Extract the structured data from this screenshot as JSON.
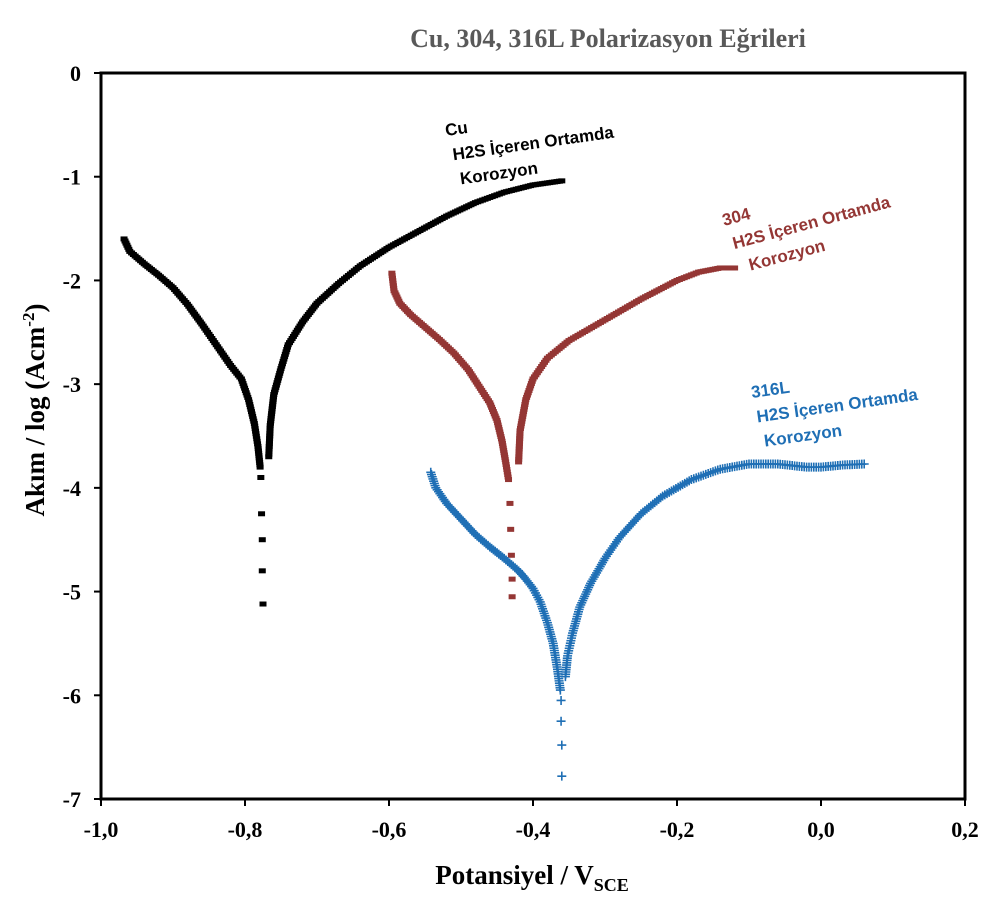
{
  "chart_data": {
    "type": "scatter",
    "title": "Cu, 304, 316L Polarizasyon Eğrileri",
    "xlabel": "Potansiyel / V",
    "xlabel_sub": "SCE",
    "ylabel": "Akım / log (Acm",
    "ylabel_sup": "-2",
    "ylabel_close": ")",
    "xlim": [
      -1.0,
      0.2
    ],
    "ylim": [
      -7,
      0
    ],
    "x_ticks": [
      "-1,0",
      "-0,8",
      "-0,6",
      "-0,4",
      "-0,2",
      "0,0",
      "0,2"
    ],
    "y_ticks": [
      "0",
      "-1",
      "-2",
      "-3",
      "-4",
      "-5",
      "-6",
      "-7"
    ],
    "grid": false,
    "series": [
      {
        "name": "Cu",
        "annotation": [
          "Cu",
          "H2S İçeren Ortamda",
          "Korozyon"
        ],
        "color": "#000000",
        "marker": "square",
        "anodic": [
          [
            -0.767,
            -3.7
          ],
          [
            -0.765,
            -3.4
          ],
          [
            -0.76,
            -3.1
          ],
          [
            -0.75,
            -2.85
          ],
          [
            -0.74,
            -2.62
          ],
          [
            -0.72,
            -2.4
          ],
          [
            -0.7,
            -2.22
          ],
          [
            -0.67,
            -2.03
          ],
          [
            -0.64,
            -1.86
          ],
          [
            -0.6,
            -1.68
          ],
          [
            -0.56,
            -1.53
          ],
          [
            -0.52,
            -1.38
          ],
          [
            -0.48,
            -1.25
          ],
          [
            -0.44,
            -1.15
          ],
          [
            -0.4,
            -1.08
          ],
          [
            -0.36,
            -1.04
          ]
        ],
        "cathodic": [
          [
            -0.968,
            -1.6
          ],
          [
            -0.96,
            -1.72
          ],
          [
            -0.94,
            -1.84
          ],
          [
            -0.92,
            -1.95
          ],
          [
            -0.9,
            -2.07
          ],
          [
            -0.88,
            -2.23
          ],
          [
            -0.86,
            -2.42
          ],
          [
            -0.84,
            -2.62
          ],
          [
            -0.82,
            -2.82
          ],
          [
            -0.805,
            -2.95
          ],
          [
            -0.795,
            -3.15
          ],
          [
            -0.787,
            -3.38
          ],
          [
            -0.782,
            -3.6
          ],
          [
            -0.779,
            -3.8
          ]
        ],
        "tail": [
          [
            -0.778,
            -3.9
          ],
          [
            -0.777,
            -4.25
          ],
          [
            -0.776,
            -4.5
          ],
          [
            -0.776,
            -4.8
          ],
          [
            -0.775,
            -5.12
          ]
        ]
      },
      {
        "name": "304",
        "annotation": [
          "304",
          "H2S İçeren Ortamda",
          "Korozyon"
        ],
        "color": "#943634",
        "marker": "square",
        "anodic": [
          [
            -0.42,
            -3.75
          ],
          [
            -0.418,
            -3.45
          ],
          [
            -0.41,
            -3.15
          ],
          [
            -0.4,
            -2.95
          ],
          [
            -0.38,
            -2.75
          ],
          [
            -0.35,
            -2.58
          ],
          [
            -0.3,
            -2.38
          ],
          [
            -0.25,
            -2.18
          ],
          [
            -0.2,
            -2.0
          ],
          [
            -0.17,
            -1.92
          ],
          [
            -0.14,
            -1.88
          ],
          [
            -0.12,
            -1.88
          ]
        ],
        "cathodic": [
          [
            -0.596,
            -1.93
          ],
          [
            -0.593,
            -2.1
          ],
          [
            -0.585,
            -2.22
          ],
          [
            -0.57,
            -2.33
          ],
          [
            -0.55,
            -2.45
          ],
          [
            -0.53,
            -2.57
          ],
          [
            -0.51,
            -2.7
          ],
          [
            -0.49,
            -2.86
          ],
          [
            -0.475,
            -3.02
          ],
          [
            -0.46,
            -3.18
          ],
          [
            -0.45,
            -3.35
          ],
          [
            -0.443,
            -3.55
          ],
          [
            -0.438,
            -3.75
          ],
          [
            -0.434,
            -3.92
          ]
        ],
        "tail": [
          [
            -0.432,
            -4.15
          ],
          [
            -0.431,
            -4.4
          ],
          [
            -0.43,
            -4.65
          ],
          [
            -0.429,
            -4.88
          ],
          [
            -0.429,
            -5.05
          ]
        ]
      },
      {
        "name": "316L",
        "annotation": [
          "316L",
          "H2S İçeren Ortamda",
          "Korozyon"
        ],
        "color": "#1f6fb5",
        "marker": "plus",
        "anodic": [
          [
            -0.355,
            -5.82
          ],
          [
            -0.352,
            -5.62
          ],
          [
            -0.345,
            -5.4
          ],
          [
            -0.335,
            -5.15
          ],
          [
            -0.32,
            -4.92
          ],
          [
            -0.3,
            -4.68
          ],
          [
            -0.28,
            -4.48
          ],
          [
            -0.25,
            -4.25
          ],
          [
            -0.22,
            -4.08
          ],
          [
            -0.18,
            -3.92
          ],
          [
            -0.14,
            -3.82
          ],
          [
            -0.1,
            -3.77
          ],
          [
            -0.06,
            -3.77
          ],
          [
            -0.02,
            -3.8
          ],
          [
            0.0,
            -3.8
          ],
          [
            0.03,
            -3.78
          ],
          [
            0.06,
            -3.77
          ]
        ],
        "cathodic": [
          [
            -0.542,
            -3.85
          ],
          [
            -0.535,
            -4.0
          ],
          [
            -0.52,
            -4.15
          ],
          [
            -0.5,
            -4.3
          ],
          [
            -0.48,
            -4.45
          ],
          [
            -0.46,
            -4.57
          ],
          [
            -0.44,
            -4.68
          ],
          [
            -0.42,
            -4.8
          ],
          [
            -0.41,
            -4.88
          ],
          [
            -0.4,
            -4.97
          ],
          [
            -0.39,
            -5.1
          ],
          [
            -0.38,
            -5.3
          ],
          [
            -0.372,
            -5.5
          ],
          [
            -0.366,
            -5.75
          ],
          [
            -0.362,
            -5.95
          ]
        ],
        "tail": [
          [
            -0.361,
            -6.05
          ],
          [
            -0.361,
            -6.25
          ],
          [
            -0.36,
            -6.48
          ],
          [
            -0.36,
            -6.78
          ]
        ]
      }
    ]
  }
}
